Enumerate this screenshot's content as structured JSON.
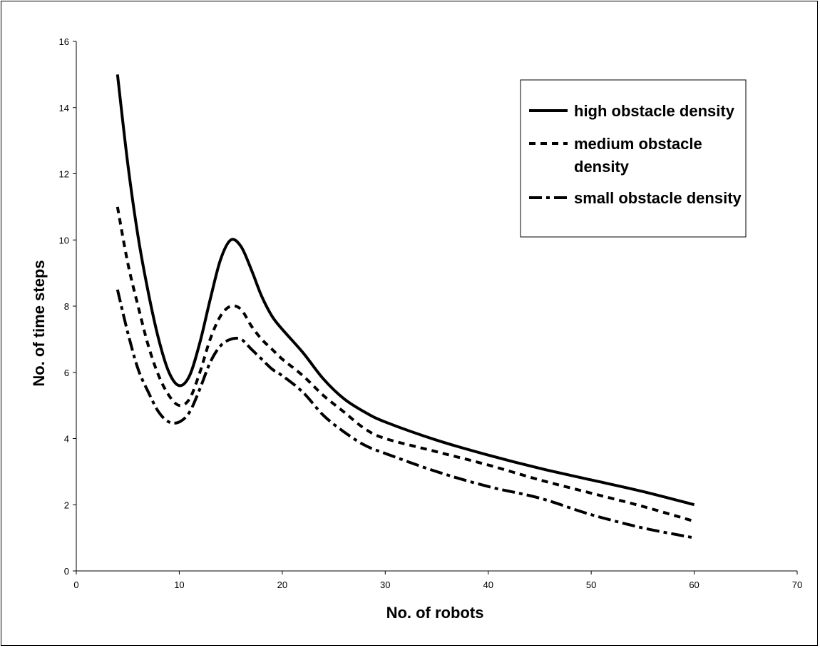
{
  "chart_data": {
    "type": "line",
    "title": "",
    "xlabel": "No. of robots",
    "ylabel": "No. of time steps",
    "xlim": [
      0,
      70
    ],
    "ylim": [
      0,
      16
    ],
    "xticks": [
      0,
      10,
      20,
      30,
      40,
      50,
      60,
      70
    ],
    "yticks": [
      0,
      2,
      4,
      6,
      8,
      10,
      12,
      14,
      16
    ],
    "grid": false,
    "legend_position": "top-right",
    "series": [
      {
        "name": "high obstacle density",
        "style": "solid",
        "x": [
          4,
          5,
          6,
          7,
          8,
          9,
          10,
          11,
          12,
          13,
          14,
          15,
          16,
          17,
          18,
          19,
          20,
          22,
          24,
          26,
          28,
          30,
          35,
          40,
          45,
          50,
          55,
          60
        ],
        "y": [
          15,
          12.3,
          10.1,
          8.4,
          7.0,
          6.0,
          5.6,
          5.9,
          6.9,
          8.2,
          9.4,
          10.0,
          9.8,
          9.1,
          8.3,
          7.7,
          7.3,
          6.6,
          5.8,
          5.2,
          4.8,
          4.5,
          3.95,
          3.5,
          3.1,
          2.75,
          2.4,
          2.0
        ]
      },
      {
        "name": "medium obstacle density",
        "style": "short-dash",
        "x": [
          4,
          5,
          6,
          7,
          8,
          9,
          10,
          11,
          12,
          13,
          14,
          15,
          16,
          17,
          18,
          19,
          20,
          22,
          24,
          26,
          28,
          30,
          35,
          40,
          45,
          50,
          55,
          60
        ],
        "y": [
          11,
          9.3,
          8.0,
          6.8,
          5.9,
          5.3,
          5.0,
          5.2,
          6.0,
          7.0,
          7.7,
          8.0,
          7.9,
          7.4,
          7.0,
          6.7,
          6.4,
          5.9,
          5.3,
          4.8,
          4.3,
          4.0,
          3.6,
          3.2,
          2.75,
          2.35,
          1.95,
          1.5
        ]
      },
      {
        "name": "small obstacle density",
        "style": "dash-dot",
        "x": [
          4,
          5,
          6,
          7,
          8,
          9,
          10,
          11,
          12,
          13,
          14,
          15,
          16,
          17,
          18,
          19,
          20,
          22,
          24,
          26,
          28,
          30,
          35,
          40,
          45,
          50,
          55,
          60
        ],
        "y": [
          8.5,
          7.2,
          6.1,
          5.4,
          4.8,
          4.5,
          4.5,
          4.8,
          5.5,
          6.3,
          6.8,
          7.0,
          7.0,
          6.7,
          6.4,
          6.1,
          5.9,
          5.4,
          4.7,
          4.2,
          3.8,
          3.55,
          3.0,
          2.55,
          2.2,
          1.7,
          1.3,
          1.0
        ]
      }
    ]
  }
}
